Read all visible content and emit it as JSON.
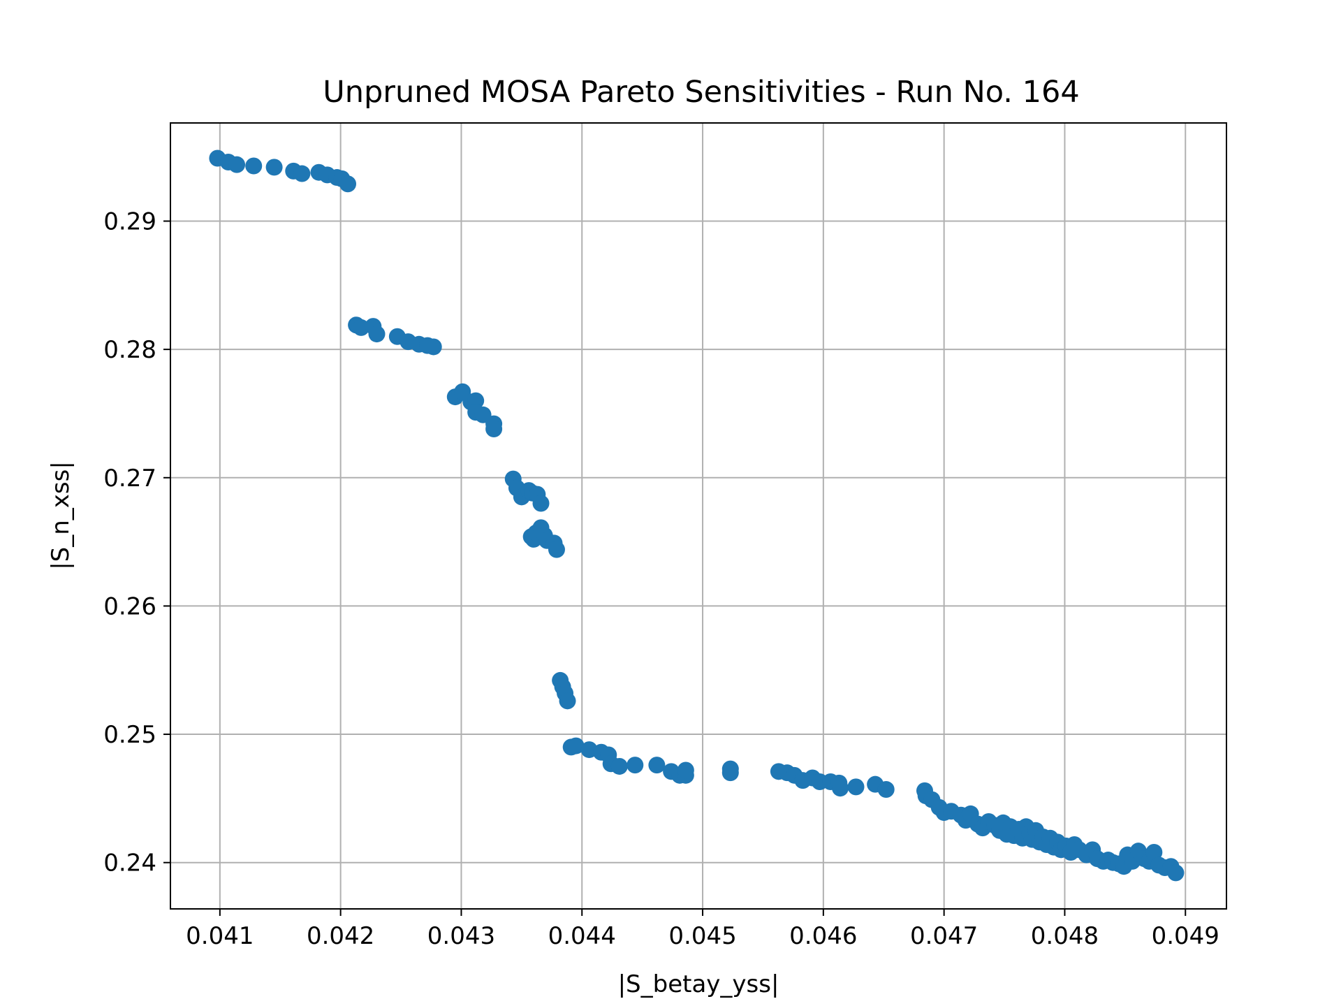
{
  "chart_data": {
    "type": "scatter",
    "title": "Unpruned MOSA Pareto Sensitivities - Run No. 164",
    "xlabel": "|S_betay_yss|",
    "ylabel": "|S_n_xss|",
    "xlim": [
      0.04059,
      0.04934
    ],
    "ylim": [
      0.23639,
      0.29765
    ],
    "xticks": [
      0.041,
      0.042,
      0.043,
      0.044,
      0.045,
      0.046,
      0.047,
      0.048,
      0.049
    ],
    "xtick_labels": [
      "0.041",
      "0.042",
      "0.043",
      "0.044",
      "0.045",
      "0.046",
      "0.047",
      "0.048",
      "0.049"
    ],
    "yticks": [
      0.24,
      0.25,
      0.26,
      0.27,
      0.28,
      0.29
    ],
    "ytick_labels": [
      "0.24",
      "0.25",
      "0.26",
      "0.27",
      "0.28",
      "0.29"
    ],
    "grid": true,
    "marker_color": "#1f77b4",
    "series": [
      {
        "points": [
          [
            0.04098,
            0.2949
          ],
          [
            0.04107,
            0.2946
          ],
          [
            0.04114,
            0.2944
          ],
          [
            0.04128,
            0.2943
          ],
          [
            0.04145,
            0.2942
          ],
          [
            0.04161,
            0.2939
          ],
          [
            0.04168,
            0.2937
          ],
          [
            0.04182,
            0.2938
          ],
          [
            0.04189,
            0.2936
          ],
          [
            0.04197,
            0.2934
          ],
          [
            0.04201,
            0.2933
          ],
          [
            0.04206,
            0.2929
          ],
          [
            0.04213,
            0.2819
          ],
          [
            0.04217,
            0.2817
          ],
          [
            0.04227,
            0.2818
          ],
          [
            0.0423,
            0.2812
          ],
          [
            0.04247,
            0.281
          ],
          [
            0.04256,
            0.2806
          ],
          [
            0.04265,
            0.2804
          ],
          [
            0.04272,
            0.2803
          ],
          [
            0.04277,
            0.2802
          ],
          [
            0.04295,
            0.2763
          ],
          [
            0.04301,
            0.2767
          ],
          [
            0.04308,
            0.2759
          ],
          [
            0.04312,
            0.276
          ],
          [
            0.04312,
            0.2751
          ],
          [
            0.04318,
            0.2749
          ],
          [
            0.04327,
            0.2742
          ],
          [
            0.04327,
            0.2738
          ],
          [
            0.04343,
            0.2699
          ],
          [
            0.04346,
            0.2692
          ],
          [
            0.0435,
            0.2685
          ],
          [
            0.04356,
            0.269
          ],
          [
            0.04359,
            0.2688
          ],
          [
            0.04363,
            0.2687
          ],
          [
            0.04366,
            0.268
          ],
          [
            0.04358,
            0.2654
          ],
          [
            0.0436,
            0.2652
          ],
          [
            0.04362,
            0.2657
          ],
          [
            0.04366,
            0.2661
          ],
          [
            0.04369,
            0.2655
          ],
          [
            0.04371,
            0.2651
          ],
          [
            0.04377,
            0.2649
          ],
          [
            0.04379,
            0.2644
          ],
          [
            0.04382,
            0.2542
          ],
          [
            0.04384,
            0.2537
          ],
          [
            0.04386,
            0.2532
          ],
          [
            0.04388,
            0.2526
          ],
          [
            0.04391,
            0.249
          ],
          [
            0.04395,
            0.2491
          ],
          [
            0.04406,
            0.2488
          ],
          [
            0.04416,
            0.2486
          ],
          [
            0.04422,
            0.2484
          ],
          [
            0.04424,
            0.2477
          ],
          [
            0.04431,
            0.2475
          ],
          [
            0.04444,
            0.2476
          ],
          [
            0.04462,
            0.2476
          ],
          [
            0.04474,
            0.2471
          ],
          [
            0.04481,
            0.2468
          ],
          [
            0.04486,
            0.2468
          ],
          [
            0.04486,
            0.2472
          ],
          [
            0.04523,
            0.2473
          ],
          [
            0.04523,
            0.247
          ],
          [
            0.04563,
            0.2471
          ],
          [
            0.0457,
            0.247
          ],
          [
            0.04576,
            0.2468
          ],
          [
            0.04583,
            0.2464
          ],
          [
            0.04591,
            0.2466
          ],
          [
            0.04597,
            0.2463
          ],
          [
            0.04606,
            0.2463
          ],
          [
            0.04613,
            0.2462
          ],
          [
            0.04614,
            0.2458
          ],
          [
            0.04627,
            0.2459
          ],
          [
            0.04643,
            0.2461
          ],
          [
            0.04652,
            0.2457
          ],
          [
            0.04684,
            0.2456
          ],
          [
            0.04685,
            0.2452
          ],
          [
            0.0469,
            0.2449
          ],
          [
            0.04696,
            0.2443
          ],
          [
            0.047,
            0.2439
          ],
          [
            0.04706,
            0.244
          ],
          [
            0.04714,
            0.2437
          ],
          [
            0.04718,
            0.2433
          ],
          [
            0.04722,
            0.2438
          ],
          [
            0.04728,
            0.243
          ],
          [
            0.04732,
            0.2427
          ],
          [
            0.04737,
            0.2432
          ],
          [
            0.04742,
            0.2429
          ],
          [
            0.04746,
            0.2425
          ],
          [
            0.04749,
            0.2431
          ],
          [
            0.04752,
            0.2422
          ],
          [
            0.04755,
            0.2428
          ],
          [
            0.04758,
            0.2421
          ],
          [
            0.04762,
            0.2426
          ],
          [
            0.04765,
            0.2419
          ],
          [
            0.04768,
            0.2428
          ],
          [
            0.04771,
            0.2423
          ],
          [
            0.04773,
            0.2418
          ],
          [
            0.04776,
            0.2425
          ],
          [
            0.04779,
            0.2416
          ],
          [
            0.04782,
            0.242
          ],
          [
            0.04785,
            0.2414
          ],
          [
            0.04788,
            0.2419
          ],
          [
            0.04791,
            0.2412
          ],
          [
            0.04794,
            0.2416
          ],
          [
            0.04797,
            0.241
          ],
          [
            0.04801,
            0.2413
          ],
          [
            0.04805,
            0.2408
          ],
          [
            0.04808,
            0.2414
          ],
          [
            0.04812,
            0.241
          ],
          [
            0.04818,
            0.2406
          ],
          [
            0.04823,
            0.241
          ],
          [
            0.04827,
            0.2403
          ],
          [
            0.04832,
            0.2401
          ],
          [
            0.04836,
            0.2402
          ],
          [
            0.0484,
            0.24
          ],
          [
            0.04845,
            0.2399
          ],
          [
            0.04849,
            0.2397
          ],
          [
            0.04852,
            0.2406
          ],
          [
            0.04856,
            0.2401
          ],
          [
            0.04861,
            0.2409
          ],
          [
            0.04866,
            0.2403
          ],
          [
            0.0487,
            0.2401
          ],
          [
            0.04874,
            0.2408
          ],
          [
            0.04878,
            0.2398
          ],
          [
            0.04883,
            0.2396
          ],
          [
            0.04888,
            0.2397
          ],
          [
            0.04892,
            0.2392
          ]
        ]
      }
    ]
  }
}
